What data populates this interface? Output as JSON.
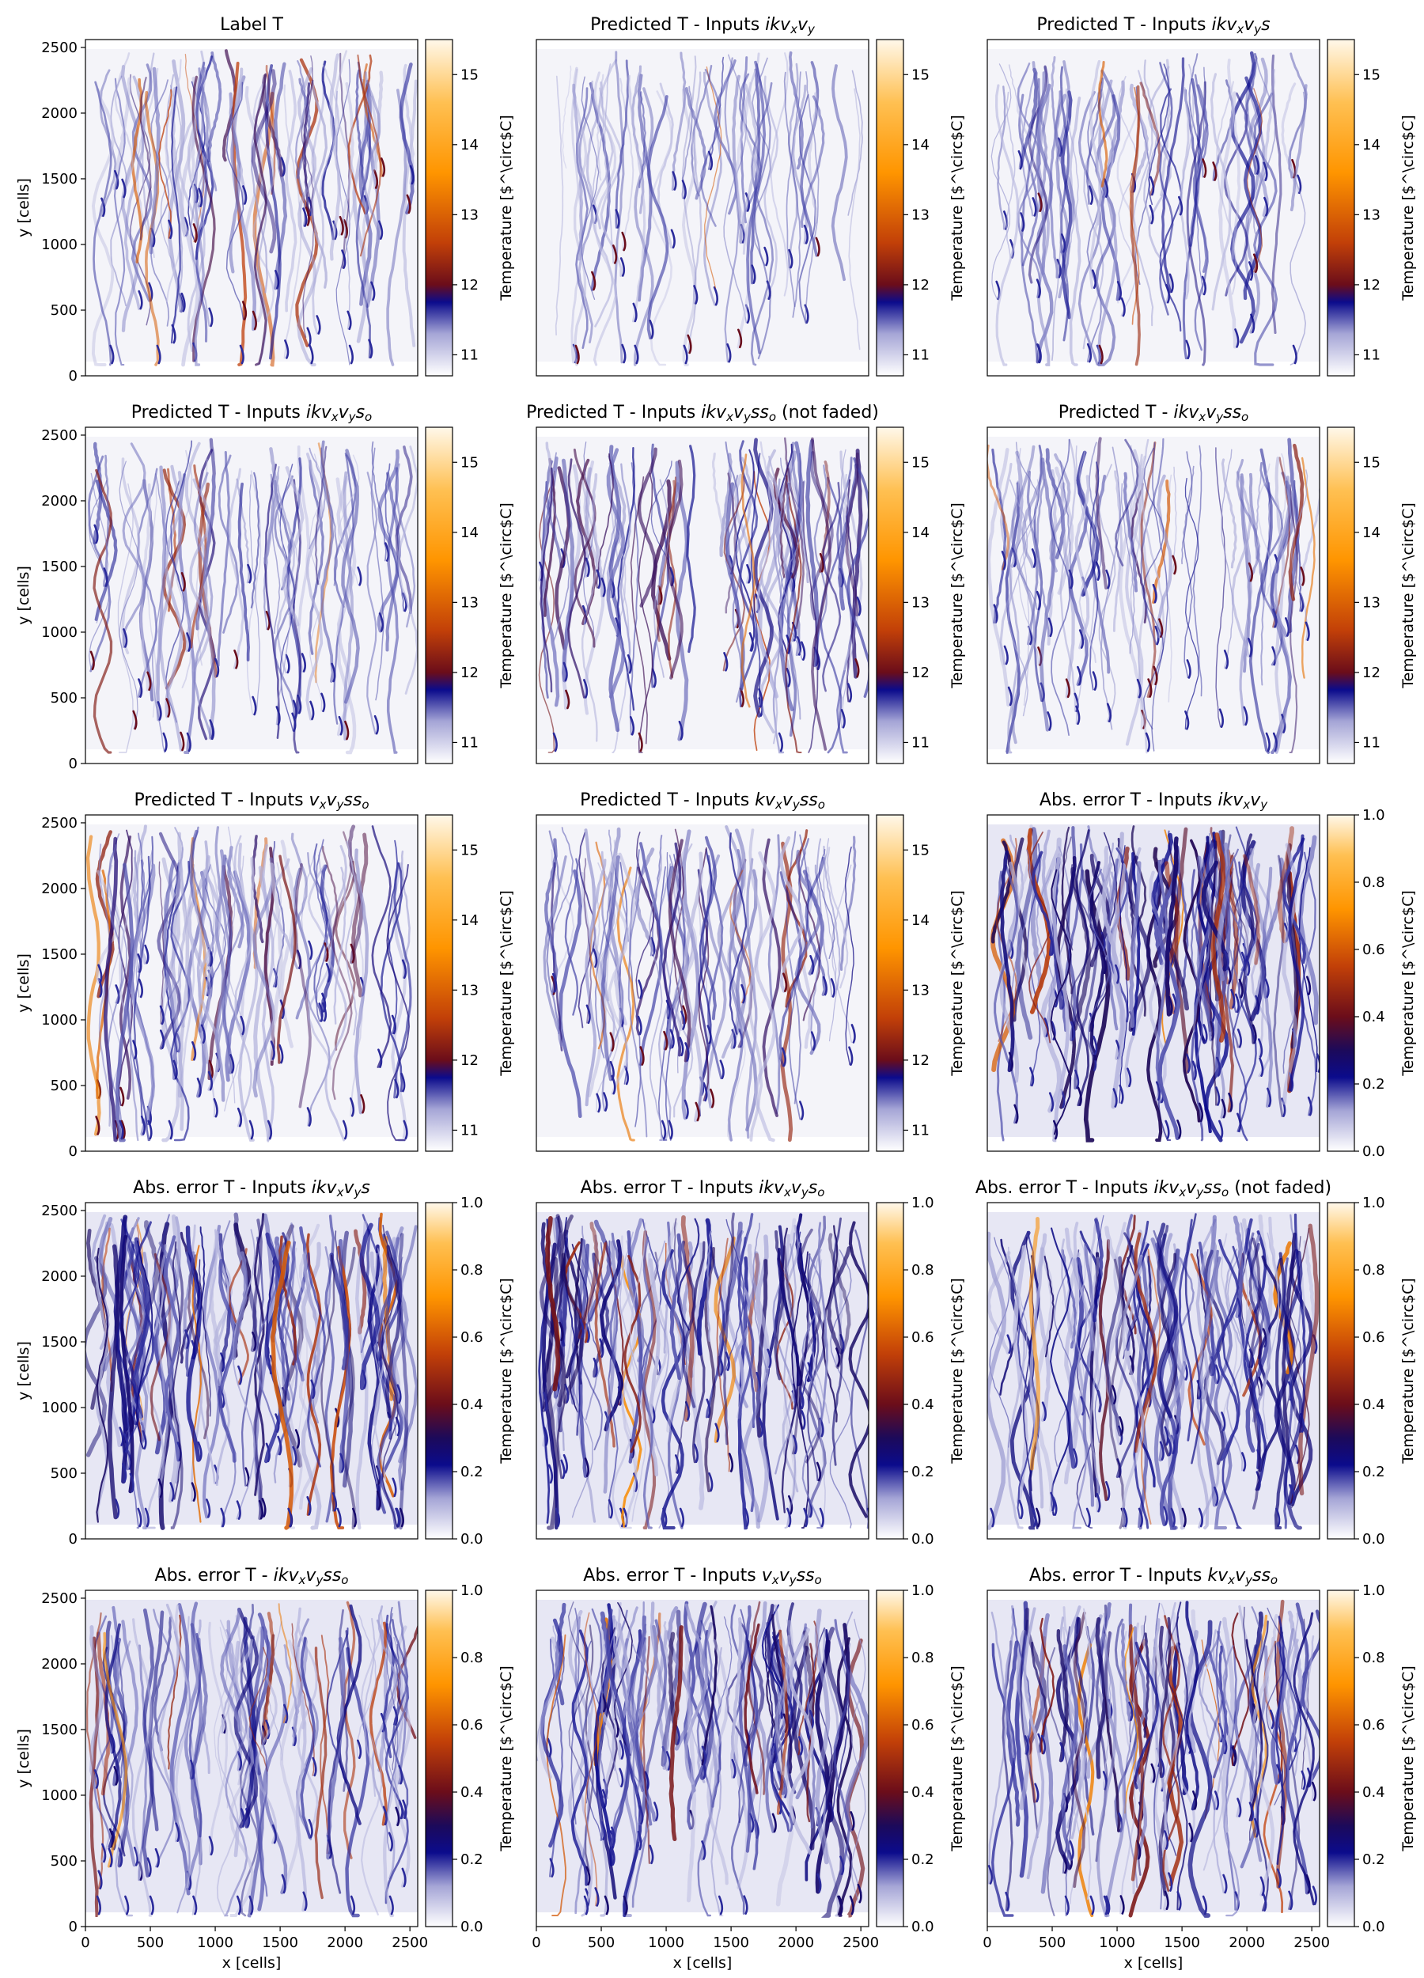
{
  "figure": {
    "colorbar_label": "Temperature [$^\\circ$C]",
    "xlabel": "x [cells]",
    "ylabel": "y [cells]"
  },
  "colormaps": {
    "temperature": {
      "range": [
        10.7,
        15.5
      ],
      "stops": [
        {
          "v": 10.7,
          "color": "#ffffff"
        },
        {
          "v": 11.3,
          "color": "#a5a5d6"
        },
        {
          "v": 11.75,
          "color": "#0b0b8c"
        },
        {
          "v": 12.0,
          "color": "#6b0d1a"
        },
        {
          "v": 12.6,
          "color": "#c24008"
        },
        {
          "v": 13.6,
          "color": "#ff9500"
        },
        {
          "v": 14.6,
          "color": "#ffc052"
        },
        {
          "v": 15.5,
          "color": "#fff8ea"
        }
      ],
      "ticks": [
        11,
        12,
        13,
        14,
        15
      ]
    },
    "error": {
      "range": [
        0.0,
        1.0
      ],
      "stops": [
        {
          "v": 0.0,
          "color": "#ffffff"
        },
        {
          "v": 0.12,
          "color": "#a5a5d6"
        },
        {
          "v": 0.22,
          "color": "#0b0b8c"
        },
        {
          "v": 0.3,
          "color": "#1c0a5a"
        },
        {
          "v": 0.4,
          "color": "#6b0d1a"
        },
        {
          "v": 0.55,
          "color": "#c24008"
        },
        {
          "v": 0.72,
          "color": "#ff9500"
        },
        {
          "v": 0.88,
          "color": "#ffc052"
        },
        {
          "v": 1.0,
          "color": "#fff8ea"
        }
      ],
      "ticks": [
        0.0,
        0.2,
        0.4,
        0.6,
        0.8,
        1.0
      ]
    }
  },
  "chart_data": [
    {
      "type": "heatmap",
      "title": "Label T",
      "colormap": "temperature",
      "intensity": 0.55,
      "seed": 3,
      "xlim": [
        0,
        2560
      ],
      "ylim": [
        0,
        2560
      ],
      "xticks": [
        0,
        500,
        1000,
        1500,
        2000,
        2500
      ],
      "yticks": [
        0,
        500,
        1000,
        1500,
        2000,
        2500
      ]
    },
    {
      "type": "heatmap",
      "title": "Predicted T - Inputs ikv_xv_y",
      "colormap": "temperature",
      "intensity": 0.3,
      "seed": 7,
      "xlim": [
        0,
        2560
      ],
      "ylim": [
        0,
        2560
      ],
      "xticks": [
        0,
        500,
        1000,
        1500,
        2000,
        2500
      ],
      "yticks": [
        0,
        500,
        1000,
        1500,
        2000,
        2500
      ]
    },
    {
      "type": "heatmap",
      "title": "Predicted T - Inputs ikv_xv_ys",
      "colormap": "temperature",
      "intensity": 0.45,
      "seed": 11,
      "xlim": [
        0,
        2560
      ],
      "ylim": [
        0,
        2560
      ],
      "xticks": [
        0,
        500,
        1000,
        1500,
        2000,
        2500
      ],
      "yticks": [
        0,
        500,
        1000,
        1500,
        2000,
        2500
      ]
    },
    {
      "type": "heatmap",
      "title": "Predicted T - Inputs ikv_xv_ys_o",
      "colormap": "temperature",
      "intensity": 0.45,
      "seed": 13,
      "xlim": [
        0,
        2560
      ],
      "ylim": [
        0,
        2560
      ],
      "xticks": [
        0,
        500,
        1000,
        1500,
        2000,
        2500
      ],
      "yticks": [
        0,
        500,
        1000,
        1500,
        2000,
        2500
      ]
    },
    {
      "type": "heatmap",
      "title": "Predicted T - Inputs ikv_xv_yss_o (not faded)",
      "colormap": "temperature",
      "intensity": 0.6,
      "seed": 17,
      "xlim": [
        0,
        2560
      ],
      "ylim": [
        0,
        2560
      ],
      "xticks": [
        0,
        500,
        1000,
        1500,
        2000,
        2500
      ],
      "yticks": [
        0,
        500,
        1000,
        1500,
        2000,
        2500
      ]
    },
    {
      "type": "heatmap",
      "title": "Predicted T - ikv_xv_yss_o",
      "colormap": "temperature",
      "intensity": 0.5,
      "seed": 19,
      "xlim": [
        0,
        2560
      ],
      "ylim": [
        0,
        2560
      ],
      "xticks": [
        0,
        500,
        1000,
        1500,
        2000,
        2500
      ],
      "yticks": [
        0,
        500,
        1000,
        1500,
        2000,
        2500
      ]
    },
    {
      "type": "heatmap",
      "title": "Predicted T - Inputs v_xv_yss_o",
      "colormap": "temperature",
      "intensity": 0.6,
      "seed": 23,
      "xlim": [
        0,
        2560
      ],
      "ylim": [
        0,
        2560
      ],
      "xticks": [
        0,
        500,
        1000,
        1500,
        2000,
        2500
      ],
      "yticks": [
        0,
        500,
        1000,
        1500,
        2000,
        2500
      ]
    },
    {
      "type": "heatmap",
      "title": "Predicted T - Inputs kv_xv_yss_o",
      "colormap": "temperature",
      "intensity": 0.55,
      "seed": 29,
      "xlim": [
        0,
        2560
      ],
      "ylim": [
        0,
        2560
      ],
      "xticks": [
        0,
        500,
        1000,
        1500,
        2000,
        2500
      ],
      "yticks": [
        0,
        500,
        1000,
        1500,
        2000,
        2500
      ]
    },
    {
      "type": "heatmap",
      "title": "Abs. error T - Inputs ikv_xv_y",
      "colormap": "error",
      "intensity": 0.95,
      "seed": 31,
      "xlim": [
        0,
        2560
      ],
      "ylim": [
        0,
        2560
      ],
      "xticks": [
        0,
        500,
        1000,
        1500,
        2000,
        2500
      ],
      "yticks": [
        0,
        500,
        1000,
        1500,
        2000,
        2500
      ]
    },
    {
      "type": "heatmap",
      "title": "Abs. error T - Inputs ikv_xv_ys",
      "colormap": "error",
      "intensity": 0.85,
      "seed": 37,
      "xlim": [
        0,
        2560
      ],
      "ylim": [
        0,
        2560
      ],
      "xticks": [
        0,
        500,
        1000,
        1500,
        2000,
        2500
      ],
      "yticks": [
        0,
        500,
        1000,
        1500,
        2000,
        2500
      ]
    },
    {
      "type": "heatmap",
      "title": "Abs. error T - Inputs ikv_xv_ys_o",
      "colormap": "error",
      "intensity": 0.85,
      "seed": 41,
      "xlim": [
        0,
        2560
      ],
      "ylim": [
        0,
        2560
      ],
      "xticks": [
        0,
        500,
        1000,
        1500,
        2000,
        2500
      ],
      "yticks": [
        0,
        500,
        1000,
        1500,
        2000,
        2500
      ]
    },
    {
      "type": "heatmap",
      "title": "Abs. error T - Inputs ikv_xv_yss_o (not faded)",
      "colormap": "error",
      "intensity": 0.8,
      "seed": 43,
      "xlim": [
        0,
        2560
      ],
      "ylim": [
        0,
        2560
      ],
      "xticks": [
        0,
        500,
        1000,
        1500,
        2000,
        2500
      ],
      "yticks": [
        0,
        500,
        1000,
        1500,
        2000,
        2500
      ]
    },
    {
      "type": "heatmap",
      "title": "Abs. error T - ikv_xv_yss_o",
      "colormap": "error",
      "intensity": 0.6,
      "seed": 47,
      "xlim": [
        0,
        2560
      ],
      "ylim": [
        0,
        2560
      ],
      "xticks": [
        0,
        500,
        1000,
        1500,
        2000,
        2500
      ],
      "yticks": [
        0,
        500,
        1000,
        1500,
        2000,
        2500
      ]
    },
    {
      "type": "heatmap",
      "title": "Abs. error T - Inputs v_xv_yss_o",
      "colormap": "error",
      "intensity": 0.85,
      "seed": 53,
      "xlim": [
        0,
        2560
      ],
      "ylim": [
        0,
        2560
      ],
      "xticks": [
        0,
        500,
        1000,
        1500,
        2000,
        2500
      ],
      "yticks": [
        0,
        500,
        1000,
        1500,
        2000,
        2500
      ]
    },
    {
      "type": "heatmap",
      "title": "Abs. error T - Inputs kv_xv_yss_o",
      "colormap": "error",
      "intensity": 0.8,
      "seed": 59,
      "xlim": [
        0,
        2560
      ],
      "ylim": [
        0,
        2560
      ],
      "xticks": [
        0,
        500,
        1000,
        1500,
        2000,
        2500
      ],
      "yticks": [
        0,
        500,
        1000,
        1500,
        2000,
        2500
      ]
    }
  ]
}
